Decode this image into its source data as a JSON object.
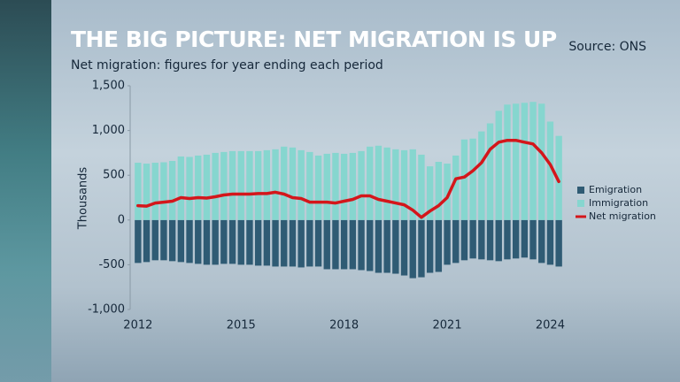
{
  "chart_data": {
    "type": "bar",
    "title": "THE BIG PICTURE: NET MIGRATION IS UP",
    "subtitle": "Net migration: figures for year ending each period",
    "source": "Source: ONS",
    "y_label": "Thousands",
    "categories": [
      "2012",
      null,
      null,
      null,
      null,
      null,
      null,
      null,
      null,
      null,
      null,
      null,
      "2015",
      null,
      null,
      null,
      null,
      null,
      null,
      null,
      null,
      null,
      null,
      null,
      "2018",
      null,
      null,
      null,
      null,
      null,
      null,
      null,
      null,
      null,
      null,
      null,
      "2021",
      null,
      null,
      null,
      null,
      null,
      null,
      null,
      null,
      null,
      null,
      null,
      "2024",
      null
    ],
    "series": [
      {
        "name": "Emigration",
        "style": "bar",
        "color": "#2f5b74",
        "values": [
          -480,
          -470,
          -450,
          -450,
          -460,
          -470,
          -480,
          -490,
          -500,
          -500,
          -490,
          -490,
          -500,
          -500,
          -510,
          -510,
          -520,
          -520,
          -520,
          -530,
          -520,
          -520,
          -550,
          -550,
          -550,
          -550,
          -560,
          -570,
          -590,
          -590,
          -600,
          -620,
          -650,
          -640,
          -590,
          -580,
          -500,
          -480,
          -450,
          -430,
          -440,
          -450,
          -460,
          -440,
          -430,
          -420,
          -440,
          -480,
          -500,
          -520
        ]
      },
      {
        "name": "Immigration",
        "style": "bar",
        "color": "#86d6cf",
        "values": [
          640,
          630,
          640,
          645,
          660,
          710,
          705,
          720,
          730,
          750,
          760,
          770,
          770,
          770,
          770,
          780,
          790,
          820,
          810,
          780,
          760,
          720,
          740,
          750,
          740,
          750,
          770,
          820,
          830,
          810,
          790,
          780,
          790,
          730,
          600,
          650,
          630,
          720,
          900,
          910,
          990,
          1080,
          1220,
          1290,
          1300,
          1310,
          1320,
          1300,
          1100,
          940
        ]
      },
      {
        "name": "Net migration",
        "style": "line",
        "color": "#d4161b",
        "values": [
          160,
          155,
          190,
          200,
          210,
          250,
          240,
          250,
          245,
          260,
          280,
          290,
          290,
          290,
          295,
          295,
          310,
          290,
          250,
          240,
          200,
          200,
          200,
          190,
          210,
          230,
          270,
          270,
          230,
          210,
          190,
          170,
          110,
          30,
          100,
          160,
          250,
          460,
          480,
          550,
          640,
          790,
          870,
          890,
          890,
          870,
          850,
          750,
          620,
          430
        ]
      }
    ],
    "ylim": [
      -1000,
      1500
    ],
    "yticks": [
      {
        "value": -1000,
        "label": "-1,000"
      },
      -500,
      0,
      500,
      {
        "value": 1000,
        "label": "1,000"
      },
      {
        "value": 1500,
        "label": "1,500"
      }
    ],
    "legend": "right"
  }
}
